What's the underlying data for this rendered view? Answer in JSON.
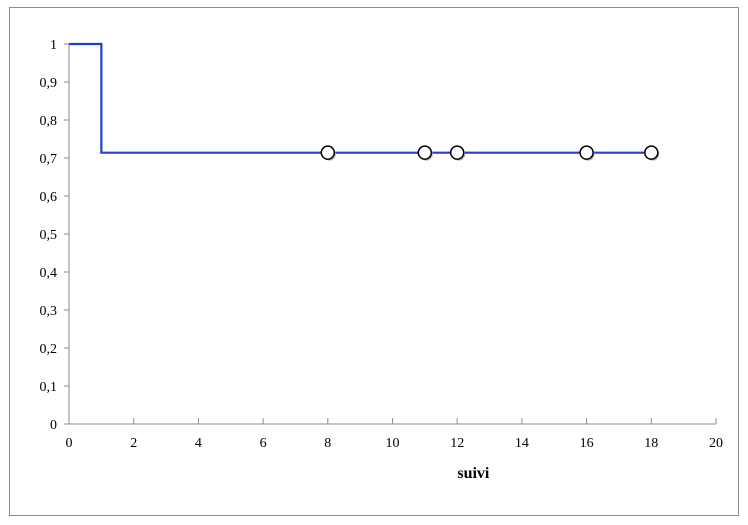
{
  "chart_data": {
    "type": "line",
    "subtype": "step",
    "title": "",
    "xlabel": "suivi",
    "ylabel": "",
    "xlim": [
      0,
      20
    ],
    "ylim": [
      0,
      1
    ],
    "x_ticks": [
      "0",
      "2",
      "4",
      "6",
      "8",
      "10",
      "12",
      "14",
      "16",
      "18",
      "20"
    ],
    "y_ticks": [
      "0",
      "0,1",
      "0,2",
      "0,3",
      "0,4",
      "0,5",
      "0,6",
      "0,7",
      "0,8",
      "0,9",
      "1"
    ],
    "grid": false,
    "legend": "none",
    "series": [
      {
        "kind": "step",
        "color": "#1f3fd6",
        "points": [
          {
            "x": 0,
            "y": 1
          },
          {
            "x": 1,
            "y": 1
          },
          {
            "x": 1,
            "y": 0.714
          },
          {
            "x": 18,
            "y": 0.714
          }
        ]
      },
      {
        "kind": "censored-markers",
        "marker": "open-circle",
        "points": [
          {
            "x": 8,
            "y": 0.714
          },
          {
            "x": 11,
            "y": 0.714
          },
          {
            "x": 12,
            "y": 0.714
          },
          {
            "x": 16,
            "y": 0.714
          },
          {
            "x": 18,
            "y": 0.714
          }
        ]
      }
    ]
  }
}
